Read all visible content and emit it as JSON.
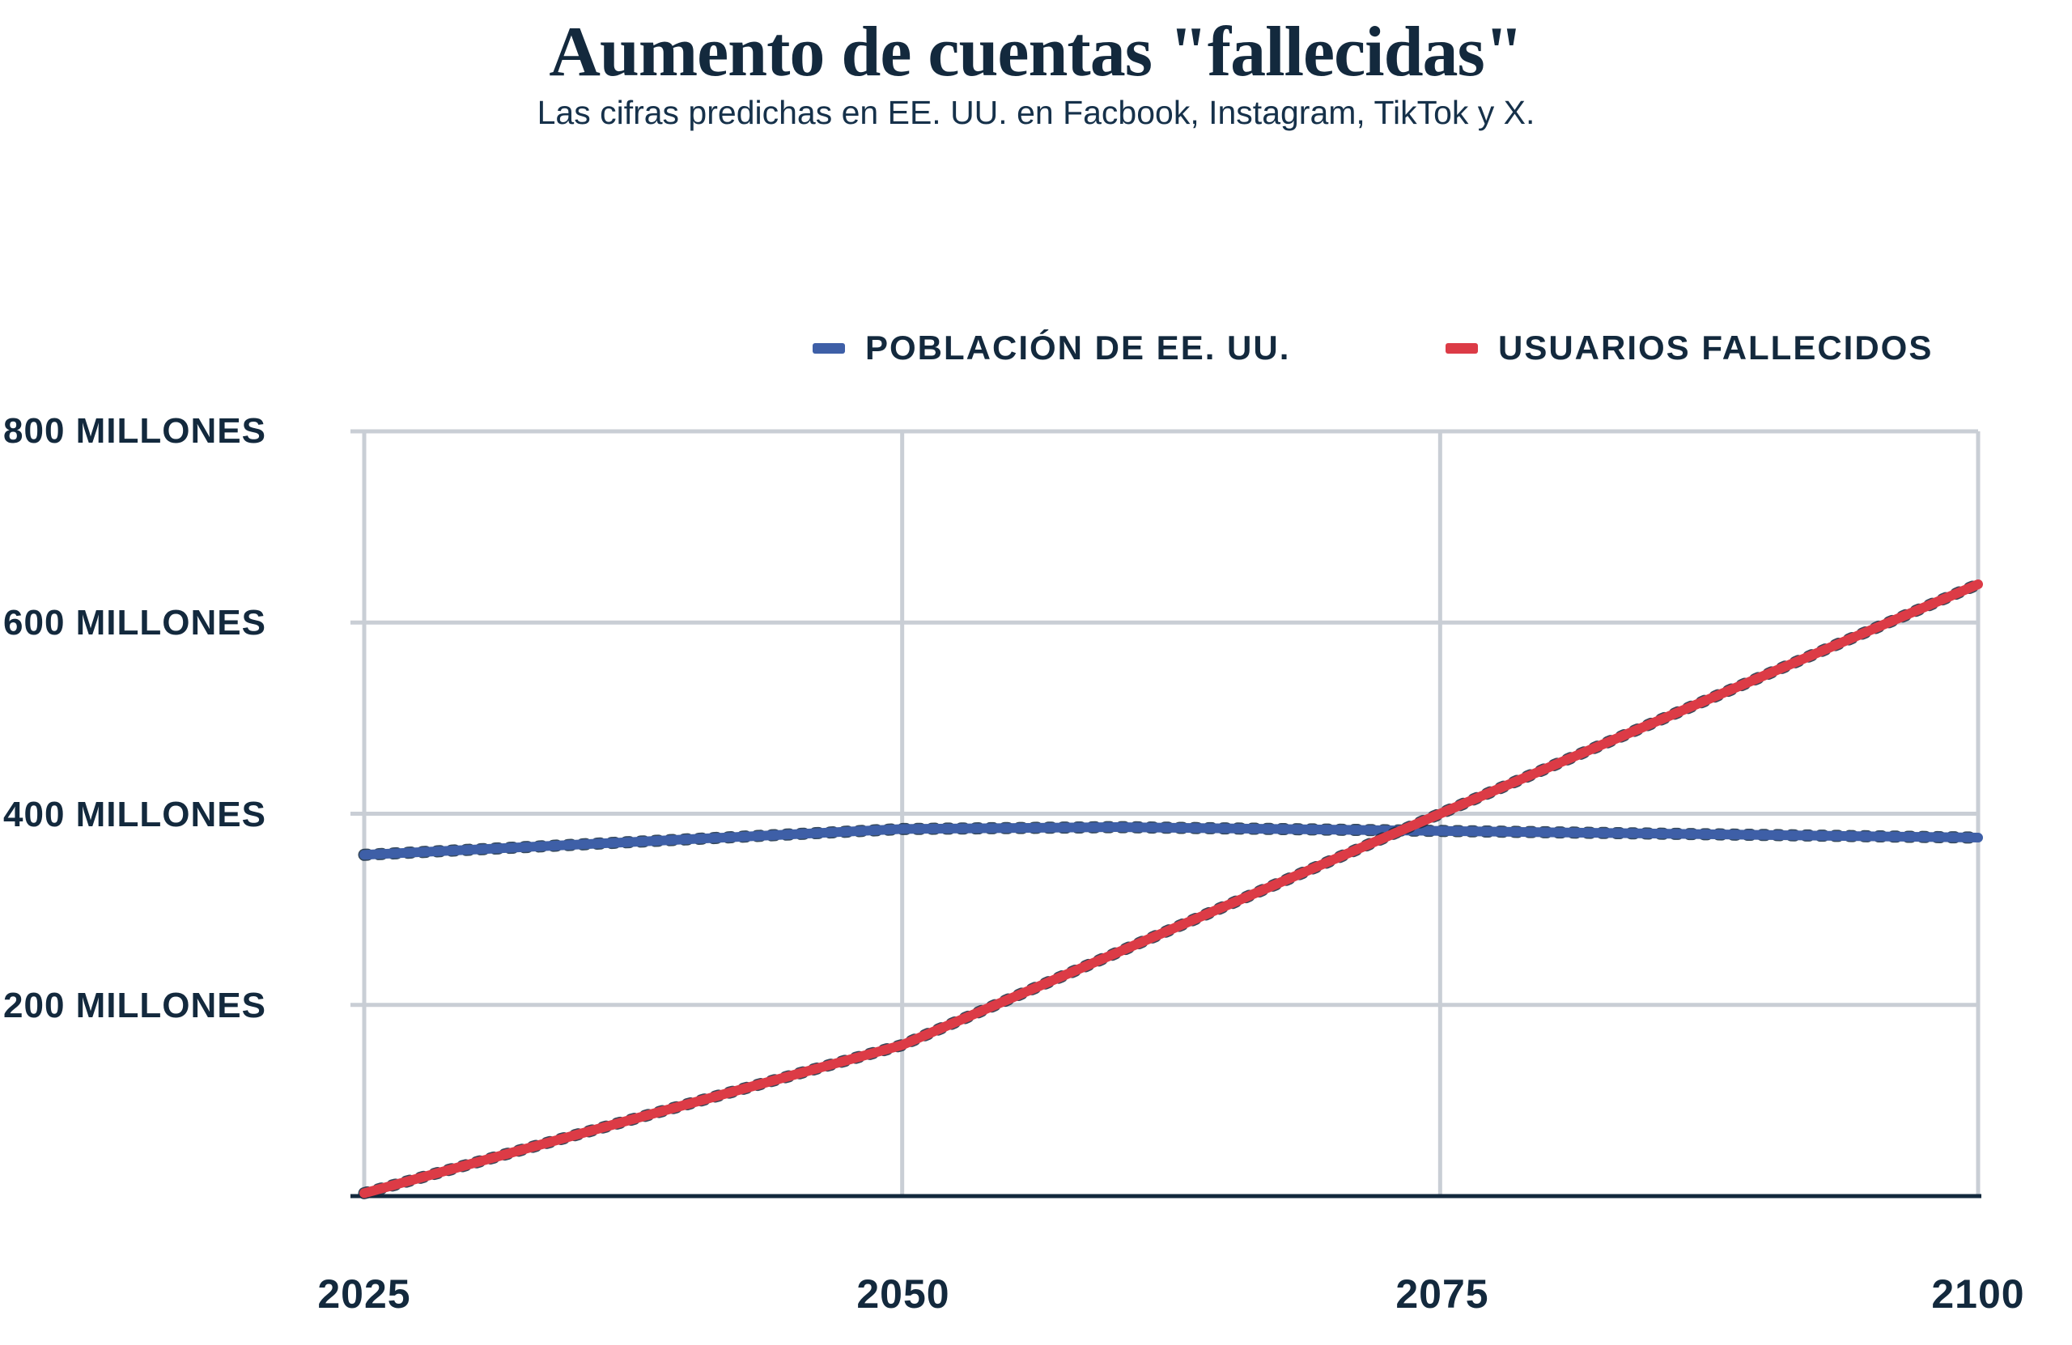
{
  "header": {
    "title": "Aumento de cuentas \"fallecidas\"",
    "subtitle": "Las cifras predichas en EE. UU. en Facbook, Instagram, TikTok y X."
  },
  "colors": {
    "text_navy": "#13293d",
    "grid_gray": "#c9ced5",
    "axis_navy": "#13293d",
    "population_blue": "#3e5fa7",
    "deceased_red": "#dc3b46",
    "background": "#ffffff"
  },
  "legend": {
    "items": [
      {
        "label": "POBLACIÓN DE EE. UU.",
        "color": "#3e5fa7"
      },
      {
        "label": "USUARIOS FALLECIDOS",
        "color": "#dc3b46"
      }
    ]
  },
  "chart_data": {
    "type": "line",
    "title": "Aumento de cuentas \"fallecidas\"",
    "subtitle": "Las cifras predichas en EE. UU. en Facbook, Instagram, TikTok y X.",
    "unit": "millones de cuentas",
    "xlim": [
      2025,
      2100
    ],
    "ylim": [
      0,
      800
    ],
    "x_ticks": [
      2025,
      2050,
      2075,
      2100
    ],
    "xtick_labels": [
      "2025",
      "2050",
      "2075",
      "2100"
    ],
    "yticks": [
      {
        "value": 800,
        "label": "800 MILLONES"
      },
      {
        "value": 600,
        "label": "600 MILLONES"
      },
      {
        "value": 400,
        "label": "400 MILLONES"
      },
      {
        "value": 200,
        "label": "200 MILLONES"
      }
    ],
    "grid": true,
    "legend_position": "top",
    "series": [
      {
        "name": "POBLACIÓN DE EE. UU.",
        "color": "#3e5fa7",
        "x": [
          2025,
          2050,
          2060,
          2075,
          2100
        ],
        "values": [
          357,
          384,
          386,
          382,
          375
        ]
      },
      {
        "name": "USUARIOS FALLECIDOS",
        "color": "#dc3b46",
        "x": [
          2025,
          2050,
          2075,
          2100
        ],
        "values": [
          3,
          158,
          400,
          640
        ]
      }
    ]
  }
}
